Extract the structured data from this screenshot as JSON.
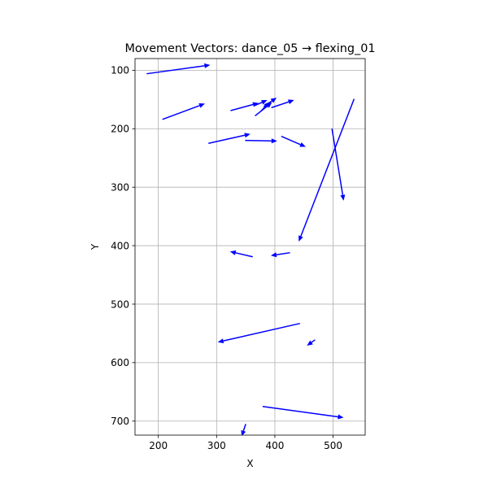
{
  "chart_data": {
    "type": "quiver",
    "title": "Movement Vectors: dance_05 → flexing_01",
    "xlabel": "X",
    "ylabel": "Y",
    "xlim": [
      160,
      555
    ],
    "ylim": [
      724,
      80
    ],
    "y_inverted": true,
    "grid": true,
    "color": "#0000ff",
    "xticks": [
      200,
      300,
      400,
      500
    ],
    "yticks": [
      100,
      200,
      300,
      400,
      500,
      600,
      700
    ],
    "vectors": [
      {
        "x0": 180,
        "y0": 106,
        "x1": 289,
        "y1": 91
      },
      {
        "x0": 207,
        "y0": 184,
        "x1": 280,
        "y1": 157
      },
      {
        "x0": 324,
        "y0": 169,
        "x1": 372,
        "y1": 156
      },
      {
        "x0": 364,
        "y0": 161,
        "x1": 387,
        "y1": 151
      },
      {
        "x0": 376,
        "y0": 170,
        "x1": 391,
        "y1": 154
      },
      {
        "x0": 381,
        "y0": 162,
        "x1": 403,
        "y1": 147
      },
      {
        "x0": 394,
        "y0": 164,
        "x1": 433,
        "y1": 151
      },
      {
        "x0": 366,
        "y0": 178,
        "x1": 395,
        "y1": 155
      },
      {
        "x0": 286,
        "y0": 225,
        "x1": 358,
        "y1": 209
      },
      {
        "x0": 349,
        "y0": 220,
        "x1": 404,
        "y1": 221
      },
      {
        "x0": 411,
        "y0": 213,
        "x1": 453,
        "y1": 231
      },
      {
        "x0": 536,
        "y0": 149,
        "x1": 441,
        "y1": 393
      },
      {
        "x0": 498,
        "y0": 200,
        "x1": 518,
        "y1": 323
      },
      {
        "x0": 362,
        "y0": 419,
        "x1": 323,
        "y1": 410
      },
      {
        "x0": 426,
        "y0": 412,
        "x1": 393,
        "y1": 417
      },
      {
        "x0": 443,
        "y0": 533,
        "x1": 302,
        "y1": 565
      },
      {
        "x0": 469,
        "y0": 561,
        "x1": 455,
        "y1": 571
      },
      {
        "x0": 379,
        "y0": 675,
        "x1": 518,
        "y1": 694
      },
      {
        "x0": 350,
        "y0": 705,
        "x1": 343,
        "y1": 726
      }
    ]
  }
}
